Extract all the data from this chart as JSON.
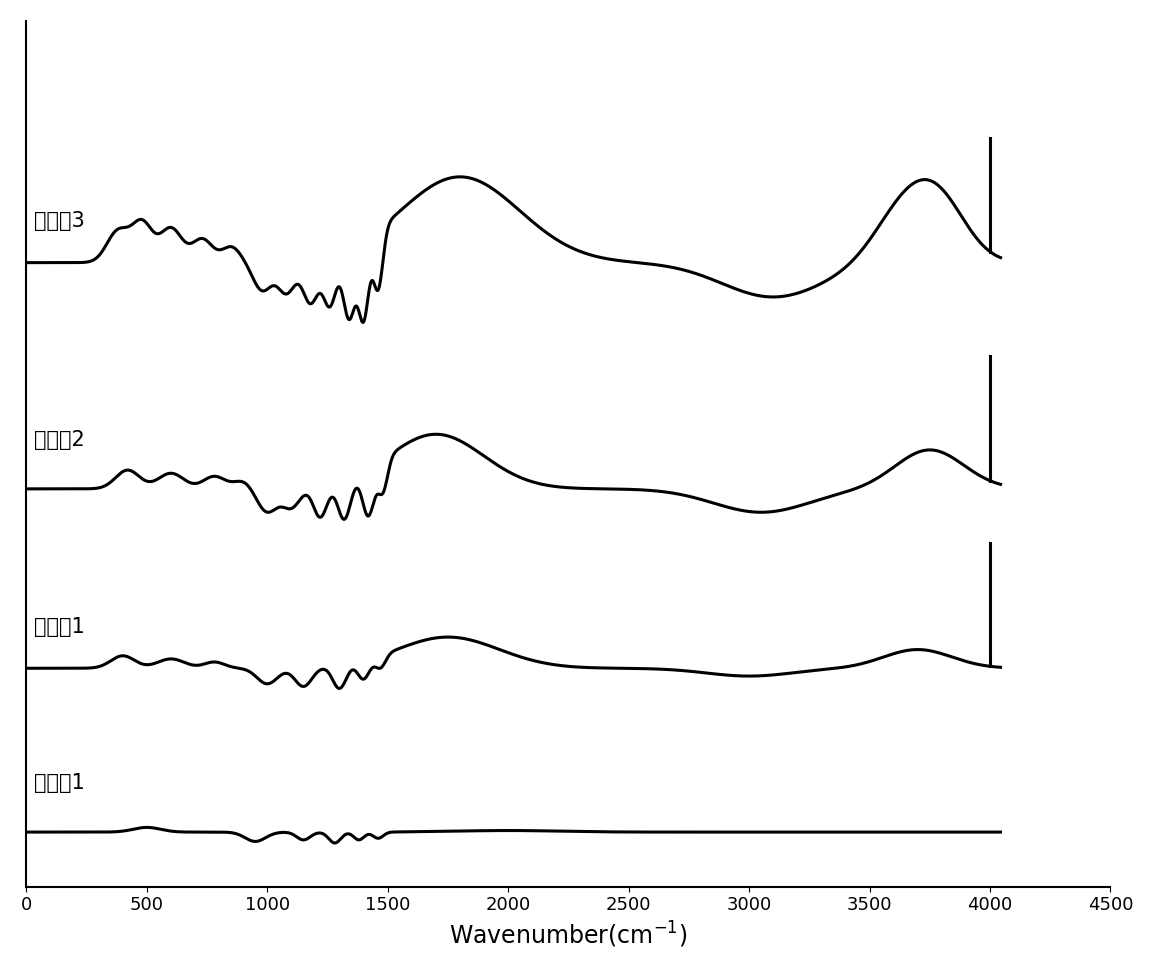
{
  "xlabel": "Wavenumber(cm$^{-1}$)",
  "xlim": [
    0,
    4500
  ],
  "xticks": [
    0,
    500,
    1000,
    1500,
    2000,
    2500,
    3000,
    3500,
    4000,
    4500
  ],
  "labels": [
    "对比例1",
    "实施例1",
    "实施例2",
    "实施例3"
  ],
  "line_color": "#000000",
  "line_width": 2.2,
  "background_color": "#ffffff",
  "label_fontsize": 15,
  "xlabel_fontsize": 17,
  "tick_fontsize": 13
}
